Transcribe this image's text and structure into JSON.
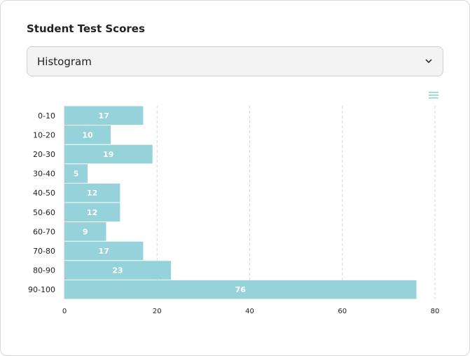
{
  "card": {
    "title": "Student Test Scores"
  },
  "chart_type_select": {
    "value": "Histogram"
  },
  "icons": {
    "select_chevron": "chevron-down-icon",
    "chart_menu": "hamburger-menu-icon"
  },
  "colors": {
    "bar": "#95d2da",
    "menu_icon": "#8fd5cf",
    "grid": "#d7d7d7"
  },
  "chart_data": {
    "type": "bar",
    "orientation": "horizontal",
    "categories": [
      "0-10",
      "10-20",
      "20-30",
      "30-40",
      "40-50",
      "50-60",
      "60-70",
      "70-80",
      "80-90",
      "90-100"
    ],
    "values": [
      17,
      10,
      19,
      5,
      12,
      12,
      9,
      17,
      23,
      76
    ],
    "xlim": [
      0,
      80
    ],
    "xticks": [
      0,
      20,
      40,
      60,
      80
    ],
    "grid": "vertical dashed",
    "data_labels": true
  }
}
